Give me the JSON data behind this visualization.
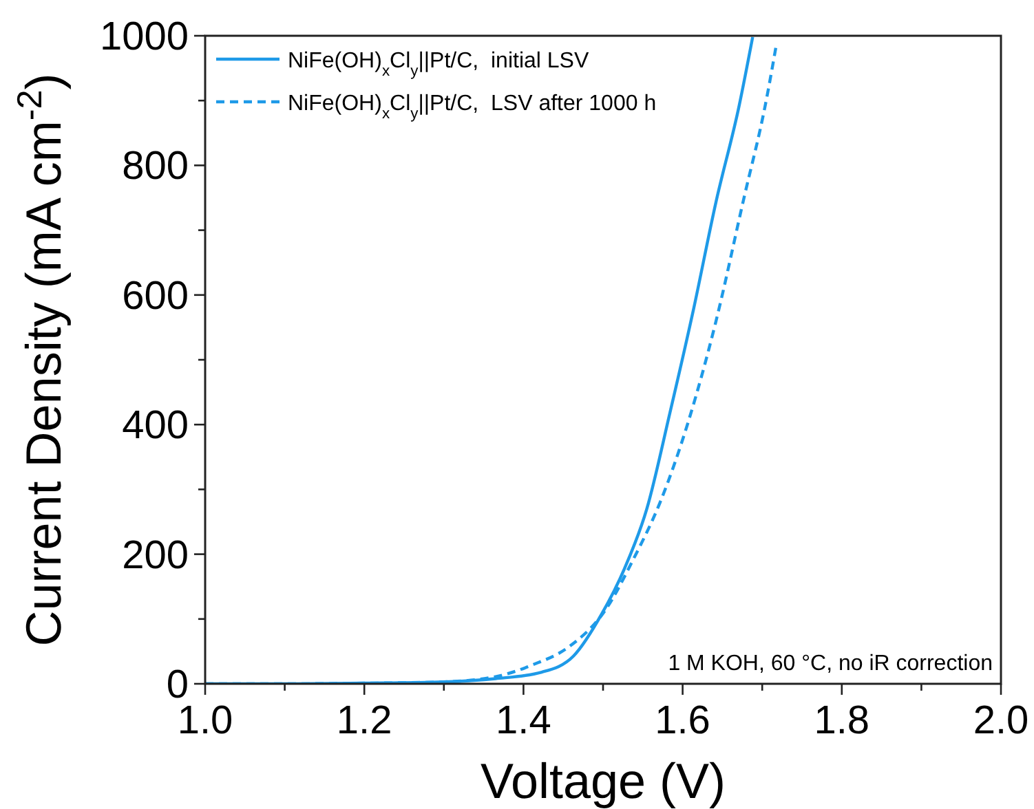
{
  "chart_data": {
    "type": "line",
    "xlabel": "Voltage (V)",
    "ylabel": "Current Density (mA cm$^{-2}$)",
    "xlim": [
      1.0,
      2.0
    ],
    "ylim": [
      0,
      1000
    ],
    "xticks": [
      {
        "value": 1,
        "label": "1.0"
      },
      {
        "value": 1.1,
        "label": null
      },
      1.2,
      {
        "value": 1.3,
        "label": null
      },
      1.4,
      {
        "value": 1.5,
        "label": null
      },
      1.6,
      {
        "value": 1.7,
        "label": null
      },
      1.8,
      {
        "value": 1.9,
        "label": null
      },
      {
        "value": 2,
        "label": "2.0"
      }
    ],
    "yticks": [
      0,
      {
        "value": 100,
        "label": null
      },
      200,
      {
        "value": 300,
        "label": null
      },
      400,
      {
        "value": 500,
        "label": null
      },
      600,
      {
        "value": 700,
        "label": null
      },
      800,
      {
        "value": 900,
        "label": null
      },
      1000
    ],
    "grid": false,
    "legend": "top left",
    "annotations": [
      "1 M KOH, 60 °C, no iR correction"
    ],
    "series": [
      {
        "name": "NiFe(OH)$_{x}$Cl$_{y}$||Pt/C,  initial LSV",
        "color": "#1e9ae8",
        "line_style": "solid",
        "x": [
          1.0,
          1.1,
          1.2,
          1.3,
          1.365,
          1.423,
          1.463,
          1.498,
          1.527,
          1.555,
          1.584,
          1.613,
          1.642,
          1.671,
          1.688
        ],
        "values": [
          0,
          0,
          1,
          3,
          8,
          18,
          43,
          107,
          178,
          270,
          418,
          574,
          744,
          892,
          998
        ]
      },
      {
        "name": "NiFe(OH)$_{x}$Cl$_{y}$||Pt/C,  LSV after 1000 h",
        "color": "#1e9ae8",
        "line_style": "dashed",
        "x": [
          1.0,
          1.1,
          1.2,
          1.3,
          1.365,
          1.411,
          1.457,
          1.503,
          1.538,
          1.573,
          1.607,
          1.642,
          1.676,
          1.705,
          1.718
        ],
        "values": [
          0,
          0,
          1,
          3,
          11,
          29,
          57,
          114,
          192,
          284,
          404,
          560,
          744,
          900,
          988
        ]
      }
    ]
  }
}
